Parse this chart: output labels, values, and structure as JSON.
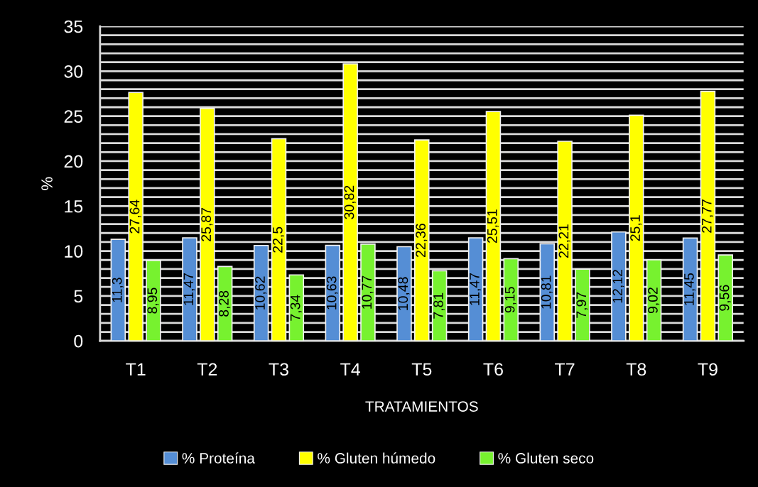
{
  "chart_data": {
    "type": "bar",
    "xlabel": "TRATAMIENTOS",
    "ylabel": "%",
    "categories": [
      "T1",
      "T2",
      "T3",
      "T4",
      "T5",
      "T6",
      "T7",
      "T8",
      "T9"
    ],
    "series": [
      {
        "name": "% Proteína",
        "color": "#558ed5",
        "values": [
          11.3,
          11.47,
          10.62,
          10.63,
          10.48,
          11.47,
          10.81,
          12.12,
          11.45
        ],
        "value_labels": [
          "11,3",
          "11,47",
          "10,62",
          "10,63",
          "10,48",
          "11,47",
          "10,81",
          "12,12",
          "11,45"
        ]
      },
      {
        "name": "% Gluten húmedo",
        "color": "#ffff00",
        "values": [
          27.64,
          25.87,
          22.5,
          30.82,
          22.36,
          25.51,
          22.21,
          25.1,
          27.77
        ],
        "value_labels": [
          "27,64",
          "25,87",
          "22,5",
          "30,82",
          "22,36",
          "25,51",
          "22,21",
          "25,1",
          "27,77"
        ]
      },
      {
        "name": "% Gluten seco",
        "color": "#77f22f",
        "values": [
          8.95,
          8.28,
          7.34,
          10.77,
          7.81,
          9.15,
          7.97,
          9.02,
          9.56
        ],
        "value_labels": [
          "8,95",
          "8,28",
          "7,34",
          "10,77",
          "7,81",
          "9,15",
          "7,97",
          "9,02",
          "9,56"
        ]
      }
    ],
    "ylim": [
      0,
      35
    ],
    "yticks": [
      0,
      {
        "value": 1,
        "label": null
      },
      {
        "value": 2,
        "label": null
      },
      {
        "value": 3,
        "label": null
      },
      {
        "value": 4,
        "label": null
      },
      5,
      {
        "value": 6,
        "label": null
      },
      {
        "value": 7,
        "label": null
      },
      {
        "value": 8,
        "label": null
      },
      {
        "value": 9,
        "label": null
      },
      10,
      {
        "value": 11,
        "label": null
      },
      {
        "value": 12,
        "label": null
      },
      {
        "value": 13,
        "label": null
      },
      {
        "value": 14,
        "label": null
      },
      15,
      {
        "value": 16,
        "label": null
      },
      {
        "value": 17,
        "label": null
      },
      {
        "value": 18,
        "label": null
      },
      {
        "value": 19,
        "label": null
      },
      20,
      {
        "value": 21,
        "label": null
      },
      {
        "value": 22,
        "label": null
      },
      {
        "value": 23,
        "label": null
      },
      {
        "value": 24,
        "label": null
      },
      25,
      {
        "value": 26,
        "label": null
      },
      {
        "value": 27,
        "label": null
      },
      {
        "value": 28,
        "label": null
      },
      {
        "value": 29,
        "label": null
      },
      30,
      {
        "value": 31,
        "label": null
      },
      {
        "value": 32,
        "label": null
      },
      {
        "value": 33,
        "label": null
      },
      {
        "value": 34,
        "label": null
      },
      35
    ],
    "grid": "y",
    "legend": "bottom"
  }
}
